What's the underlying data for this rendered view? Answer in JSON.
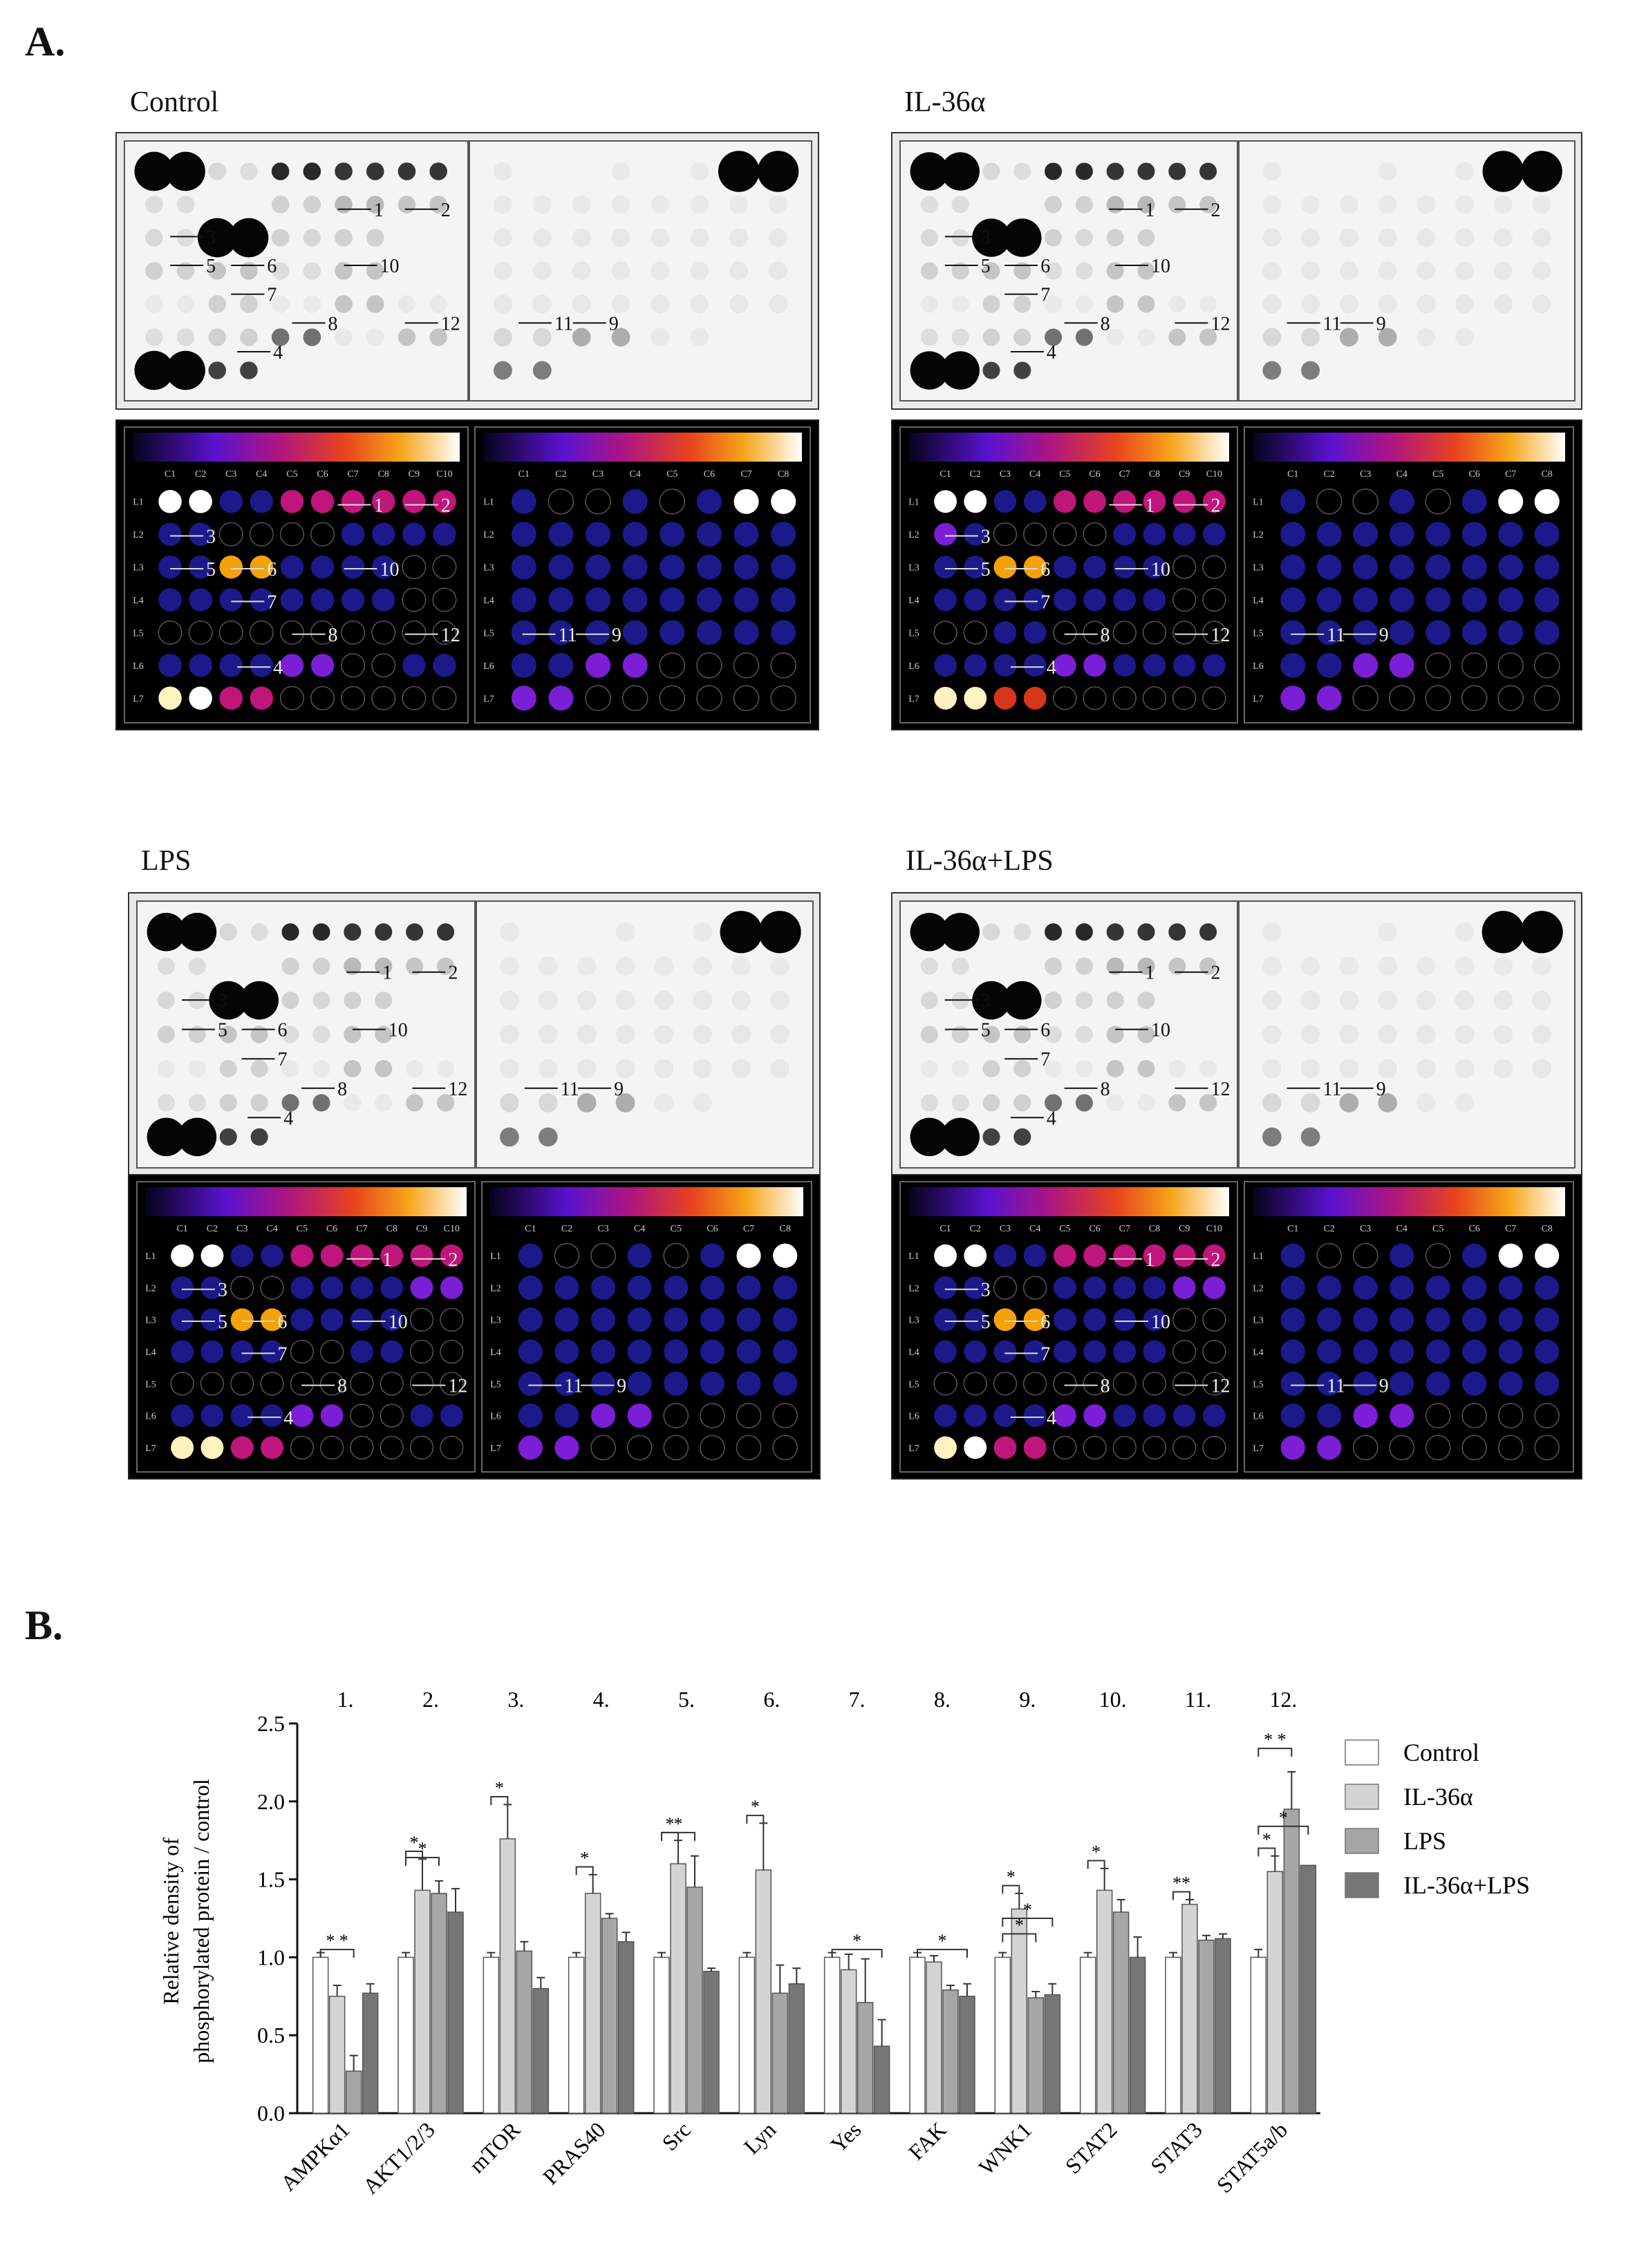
{
  "figure": {
    "section_a_label": "A.",
    "section_b_label": "B."
  },
  "arrays": {
    "panels": [
      {
        "title": "Control"
      },
      {
        "title": "IL-36α"
      },
      {
        "title": "LPS"
      },
      {
        "title": "IL-36α+LPS"
      }
    ],
    "left_columns": [
      "C1",
      "C2",
      "C3",
      "C4",
      "C5",
      "C6",
      "C7",
      "C8",
      "C9",
      "C10"
    ],
    "right_columns": [
      "C1",
      "C2",
      "C3",
      "C4",
      "C5",
      "C6",
      "C7",
      "C8"
    ],
    "rows": [
      "L1",
      "L2",
      "L3",
      "L4",
      "L5",
      "L6",
      "L7"
    ],
    "spot_labels": [
      "1",
      "2",
      "3",
      "4",
      "5",
      "6",
      "7",
      "8",
      "9",
      "10",
      "11",
      "12"
    ],
    "colors": {
      "white": "#ffffff",
      "blue": "#1c1a8a",
      "violet": "#7a1fd6",
      "magenta": "#c0157a",
      "orange": "#f5a20a",
      "red": "#d8361a",
      "pale": "#fdf2c0"
    }
  },
  "chart_data": {
    "type": "bar",
    "numbers": [
      "1.",
      "2.",
      "3.",
      "4.",
      "5.",
      "6.",
      "7.",
      "8.",
      "9.",
      "10.",
      "11.",
      "12."
    ],
    "categories": [
      "AMPKα1",
      "AKT1/2/3",
      "mTOR",
      "PRAS40",
      "Src",
      "Lyn",
      "Yes",
      "FAK",
      "WNK1",
      "STAT2",
      "STAT3",
      "STAT5a/b"
    ],
    "ylabel_line1": "Relative density of",
    "ylabel_line2": "phosphorylated protein / control",
    "ylim": [
      0,
      2.5
    ],
    "yticks": [
      "0.0",
      "0.5",
      "1.0",
      "1.5",
      "2.0",
      "2.5"
    ],
    "series": [
      {
        "name": "Control",
        "color": "#ffffff",
        "values": [
          1.0,
          1.0,
          1.0,
          1.0,
          1.0,
          1.0,
          1.0,
          1.0,
          1.0,
          1.0,
          1.0,
          1.0
        ],
        "errors": [
          0.03,
          0.03,
          0.03,
          0.03,
          0.03,
          0.03,
          0.03,
          0.03,
          0.03,
          0.03,
          0.03,
          0.05
        ]
      },
      {
        "name": "IL-36α",
        "color": "#d4d4d4",
        "values": [
          0.75,
          1.43,
          1.76,
          1.41,
          1.6,
          1.56,
          0.92,
          0.97,
          1.31,
          1.43,
          1.34,
          1.55
        ],
        "errors": [
          0.07,
          0.2,
          0.22,
          0.12,
          0.15,
          0.3,
          0.1,
          0.04,
          0.1,
          0.14,
          0.03,
          0.1
        ]
      },
      {
        "name": "LPS",
        "color": "#a6a6a6",
        "values": [
          0.27,
          1.41,
          1.04,
          1.25,
          1.45,
          0.77,
          0.71,
          0.79,
          0.74,
          1.29,
          1.11,
          1.95
        ],
        "errors": [
          0.1,
          0.08,
          0.06,
          0.03,
          0.2,
          0.18,
          0.28,
          0.03,
          0.04,
          0.08,
          0.03,
          0.24
        ]
      },
      {
        "name": "IL-36α+LPS",
        "color": "#767676",
        "values": [
          0.77,
          1.29,
          0.8,
          1.1,
          0.91,
          0.83,
          0.43,
          0.75,
          0.76,
          1.0,
          1.12,
          1.59
        ],
        "errors": [
          0.06,
          0.15,
          0.07,
          0.06,
          0.02,
          0.1,
          0.17,
          0.08,
          0.07,
          0.13,
          0.03,
          0.0
        ]
      }
    ],
    "significance": [
      {
        "cat": 0,
        "marks": [
          {
            "label": "* *",
            "to": 2
          }
        ]
      },
      {
        "cat": 1,
        "marks": [
          {
            "label": "*",
            "to": 1
          },
          {
            "label": "*",
            "to": 2
          }
        ]
      },
      {
        "cat": 2,
        "marks": [
          {
            "label": "*",
            "to": 1
          }
        ]
      },
      {
        "cat": 3,
        "marks": [
          {
            "label": "*",
            "to": 1
          }
        ]
      },
      {
        "cat": 4,
        "marks": [
          {
            "label": "*",
            "to": 1
          },
          {
            "label": "*",
            "to": 2
          }
        ]
      },
      {
        "cat": 5,
        "marks": [
          {
            "label": "*",
            "to": 1
          }
        ]
      },
      {
        "cat": 6,
        "marks": [
          {
            "label": "*",
            "to": 3
          }
        ]
      },
      {
        "cat": 7,
        "marks": [
          {
            "label": "*",
            "to": 3
          }
        ]
      },
      {
        "cat": 8,
        "marks": [
          {
            "label": "*",
            "to": 1
          },
          {
            "label": "*",
            "to": 2
          },
          {
            "label": "*",
            "to": 3
          }
        ]
      },
      {
        "cat": 9,
        "marks": [
          {
            "label": "*",
            "to": 1
          }
        ]
      },
      {
        "cat": 10,
        "marks": [
          {
            "label": "**",
            "to": 1
          }
        ]
      },
      {
        "cat": 11,
        "marks": [
          {
            "label": "*",
            "to": 1
          },
          {
            "label": "* *",
            "to": 2
          },
          {
            "label": "*",
            "to": 3
          }
        ]
      }
    ],
    "legend_position": "right"
  }
}
